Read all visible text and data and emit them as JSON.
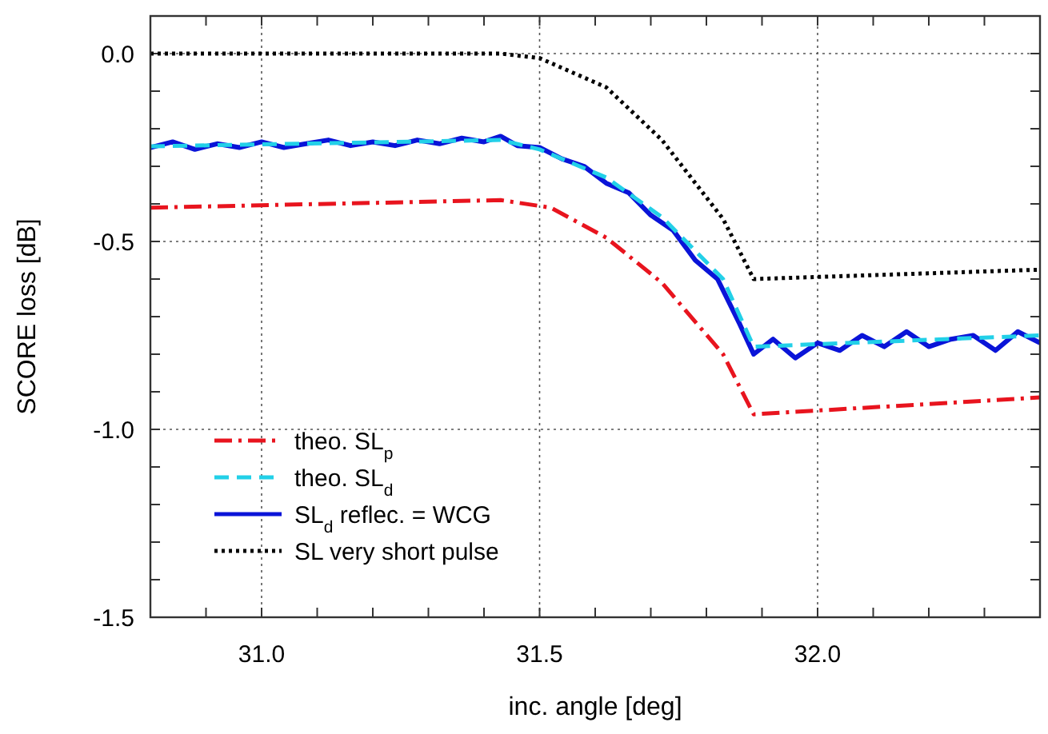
{
  "chart_data": {
    "type": "line",
    "xlabel": "inc. angle [deg]",
    "ylabel": "SCORE loss [dB]",
    "xlim": [
      30.8,
      32.4
    ],
    "ylim": [
      -1.5,
      0.1
    ],
    "xticks": [
      {
        "value": 30.9,
        "label": null
      },
      {
        "value": 31.0,
        "label": "31.0"
      },
      {
        "value": 31.1,
        "label": null
      },
      {
        "value": 31.2,
        "label": null
      },
      {
        "value": 31.3,
        "label": null
      },
      {
        "value": 31.4,
        "label": null
      },
      31.5,
      {
        "value": 31.6,
        "label": null
      },
      {
        "value": 31.7,
        "label": null
      },
      {
        "value": 31.8,
        "label": null
      },
      {
        "value": 31.9,
        "label": null
      },
      {
        "value": 32.0,
        "label": "32.0"
      },
      {
        "value": 32.1,
        "label": null
      },
      {
        "value": 32.2,
        "label": null
      },
      {
        "value": 32.3,
        "label": null
      }
    ],
    "yticks": [
      -1.5,
      {
        "value": -1.4,
        "label": null
      },
      {
        "value": -1.3,
        "label": null
      },
      {
        "value": -1.2,
        "label": null
      },
      {
        "value": -1.1,
        "label": null
      },
      {
        "value": -1.0,
        "label": "-1.0"
      },
      {
        "value": -0.9,
        "label": null
      },
      {
        "value": -0.8,
        "label": null
      },
      {
        "value": -0.7,
        "label": null
      },
      {
        "value": -0.6,
        "label": null
      },
      -0.5,
      {
        "value": -0.4,
        "label": null
      },
      {
        "value": -0.3,
        "label": null
      },
      {
        "value": -0.2,
        "label": null
      },
      {
        "value": -0.1,
        "label": null
      },
      {
        "value": 0.0,
        "label": "0.0"
      }
    ],
    "grid": true,
    "legend": "bottom left",
    "series": [
      {
        "name": "theo. SL$_{p}$",
        "color": "#e8141e",
        "line_style": "dashdot",
        "x": [
          30.8,
          31.43,
          31.52,
          31.62,
          31.72,
          31.83,
          31.885,
          32.4
        ],
        "values": [
          -0.41,
          -0.39,
          -0.41,
          -0.49,
          -0.61,
          -0.8,
          -0.96,
          -0.915
        ]
      },
      {
        "name": "theo. SL$_{d}$",
        "color": "#22d0e8",
        "line_style": "dashed",
        "x": [
          30.8,
          31.43,
          31.5,
          31.62,
          31.72,
          31.83,
          31.885,
          32.4
        ],
        "values": [
          -0.247,
          -0.23,
          -0.255,
          -0.33,
          -0.435,
          -0.6,
          -0.78,
          -0.75
        ]
      },
      {
        "name": "SL$_{d}$ reflec. = WCG",
        "color": "#0a14d8",
        "line_style": "solid",
        "x": [
          30.8,
          30.84,
          30.88,
          30.92,
          30.96,
          31.0,
          31.04,
          31.08,
          31.12,
          31.16,
          31.2,
          31.24,
          31.28,
          31.32,
          31.36,
          31.4,
          31.43,
          31.46,
          31.5,
          31.54,
          31.58,
          31.62,
          31.66,
          31.7,
          31.74,
          31.78,
          31.82,
          31.86,
          31.885,
          31.92,
          31.96,
          32.0,
          32.04,
          32.08,
          32.12,
          32.16,
          32.2,
          32.24,
          32.28,
          32.32,
          32.36,
          32.4
        ],
        "values": [
          -0.25,
          -0.235,
          -0.255,
          -0.24,
          -0.25,
          -0.235,
          -0.25,
          -0.24,
          -0.23,
          -0.245,
          -0.235,
          -0.245,
          -0.23,
          -0.24,
          -0.225,
          -0.235,
          -0.22,
          -0.245,
          -0.25,
          -0.28,
          -0.3,
          -0.345,
          -0.37,
          -0.43,
          -0.47,
          -0.55,
          -0.6,
          -0.72,
          -0.8,
          -0.76,
          -0.81,
          -0.77,
          -0.79,
          -0.75,
          -0.78,
          -0.74,
          -0.78,
          -0.76,
          -0.75,
          -0.79,
          -0.74,
          -0.77
        ]
      },
      {
        "name": "SL very short pulse",
        "color": "#000000",
        "line_style": "dotted",
        "x": [
          30.8,
          31.43,
          31.5,
          31.62,
          31.72,
          31.83,
          31.885,
          32.4
        ],
        "values": [
          0.0,
          0.0,
          -0.012,
          -0.09,
          -0.23,
          -0.44,
          -0.6,
          -0.575
        ]
      }
    ]
  }
}
